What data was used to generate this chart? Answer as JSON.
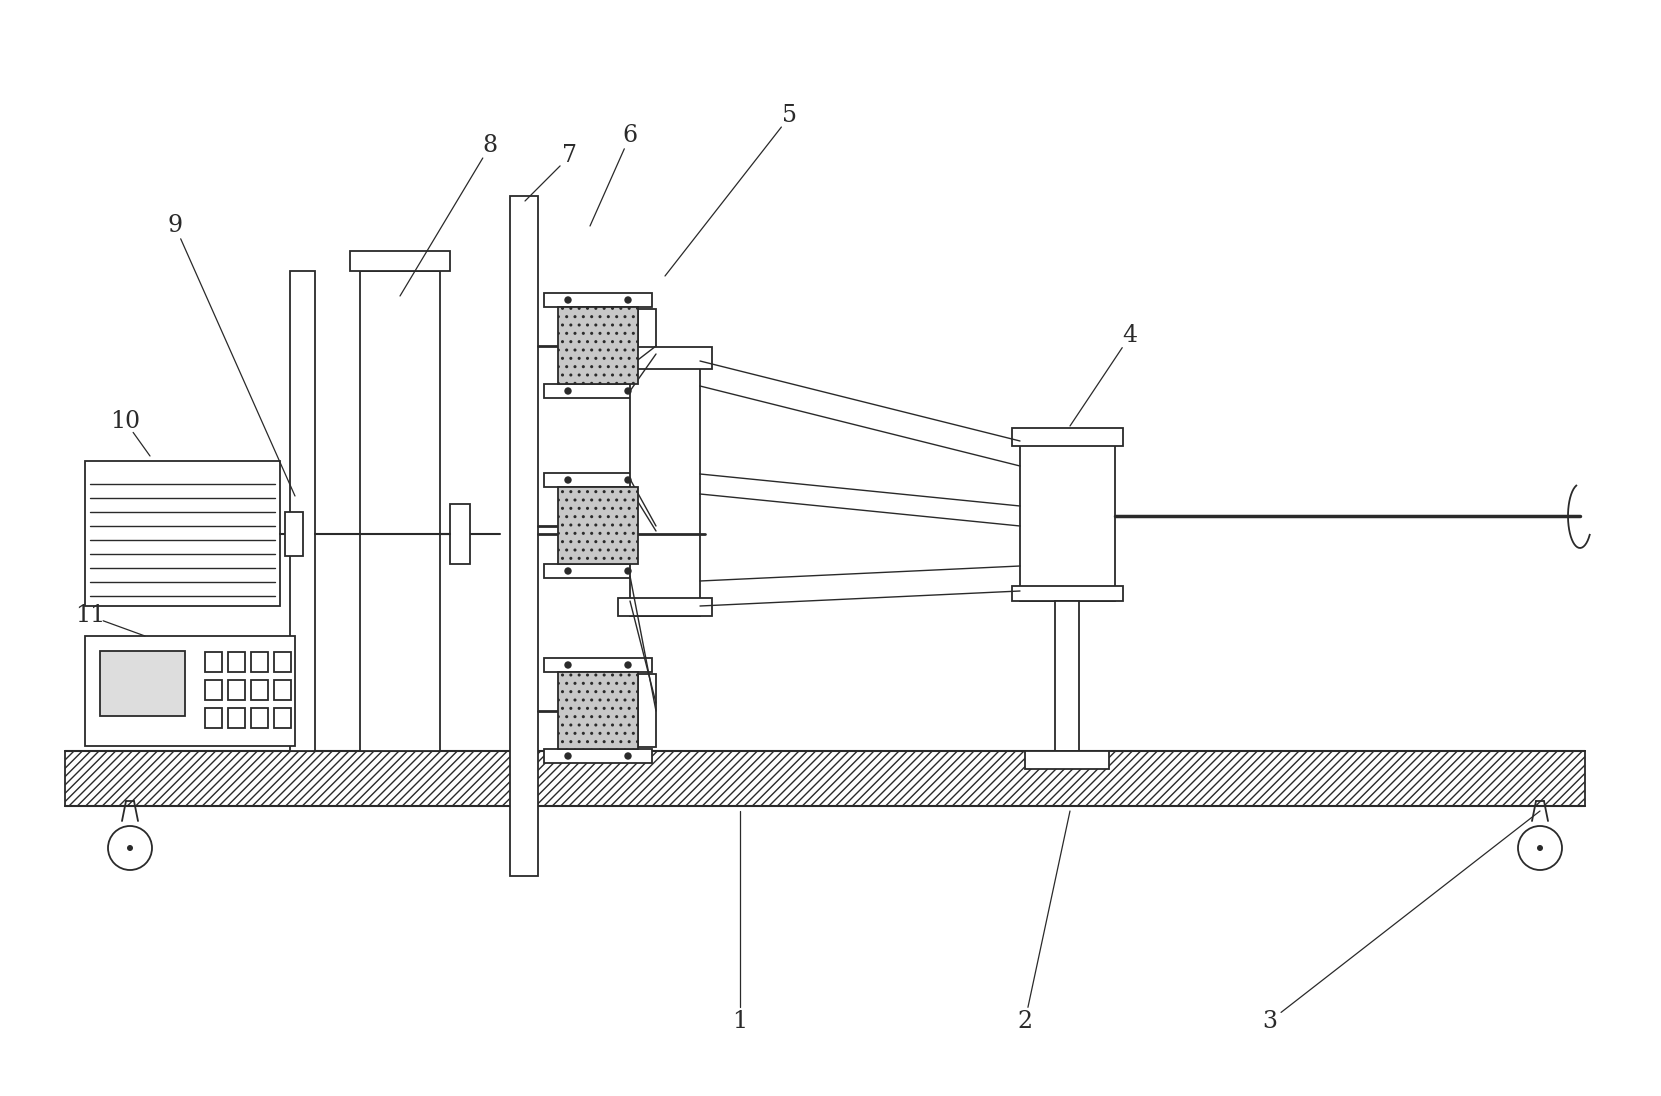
{
  "bg_color": "#ffffff",
  "line_color": "#2a2a2a",
  "label_fontsize": 17,
  "label_color": "#2a2a2a",
  "fig_width": 16.61,
  "fig_height": 10.96
}
